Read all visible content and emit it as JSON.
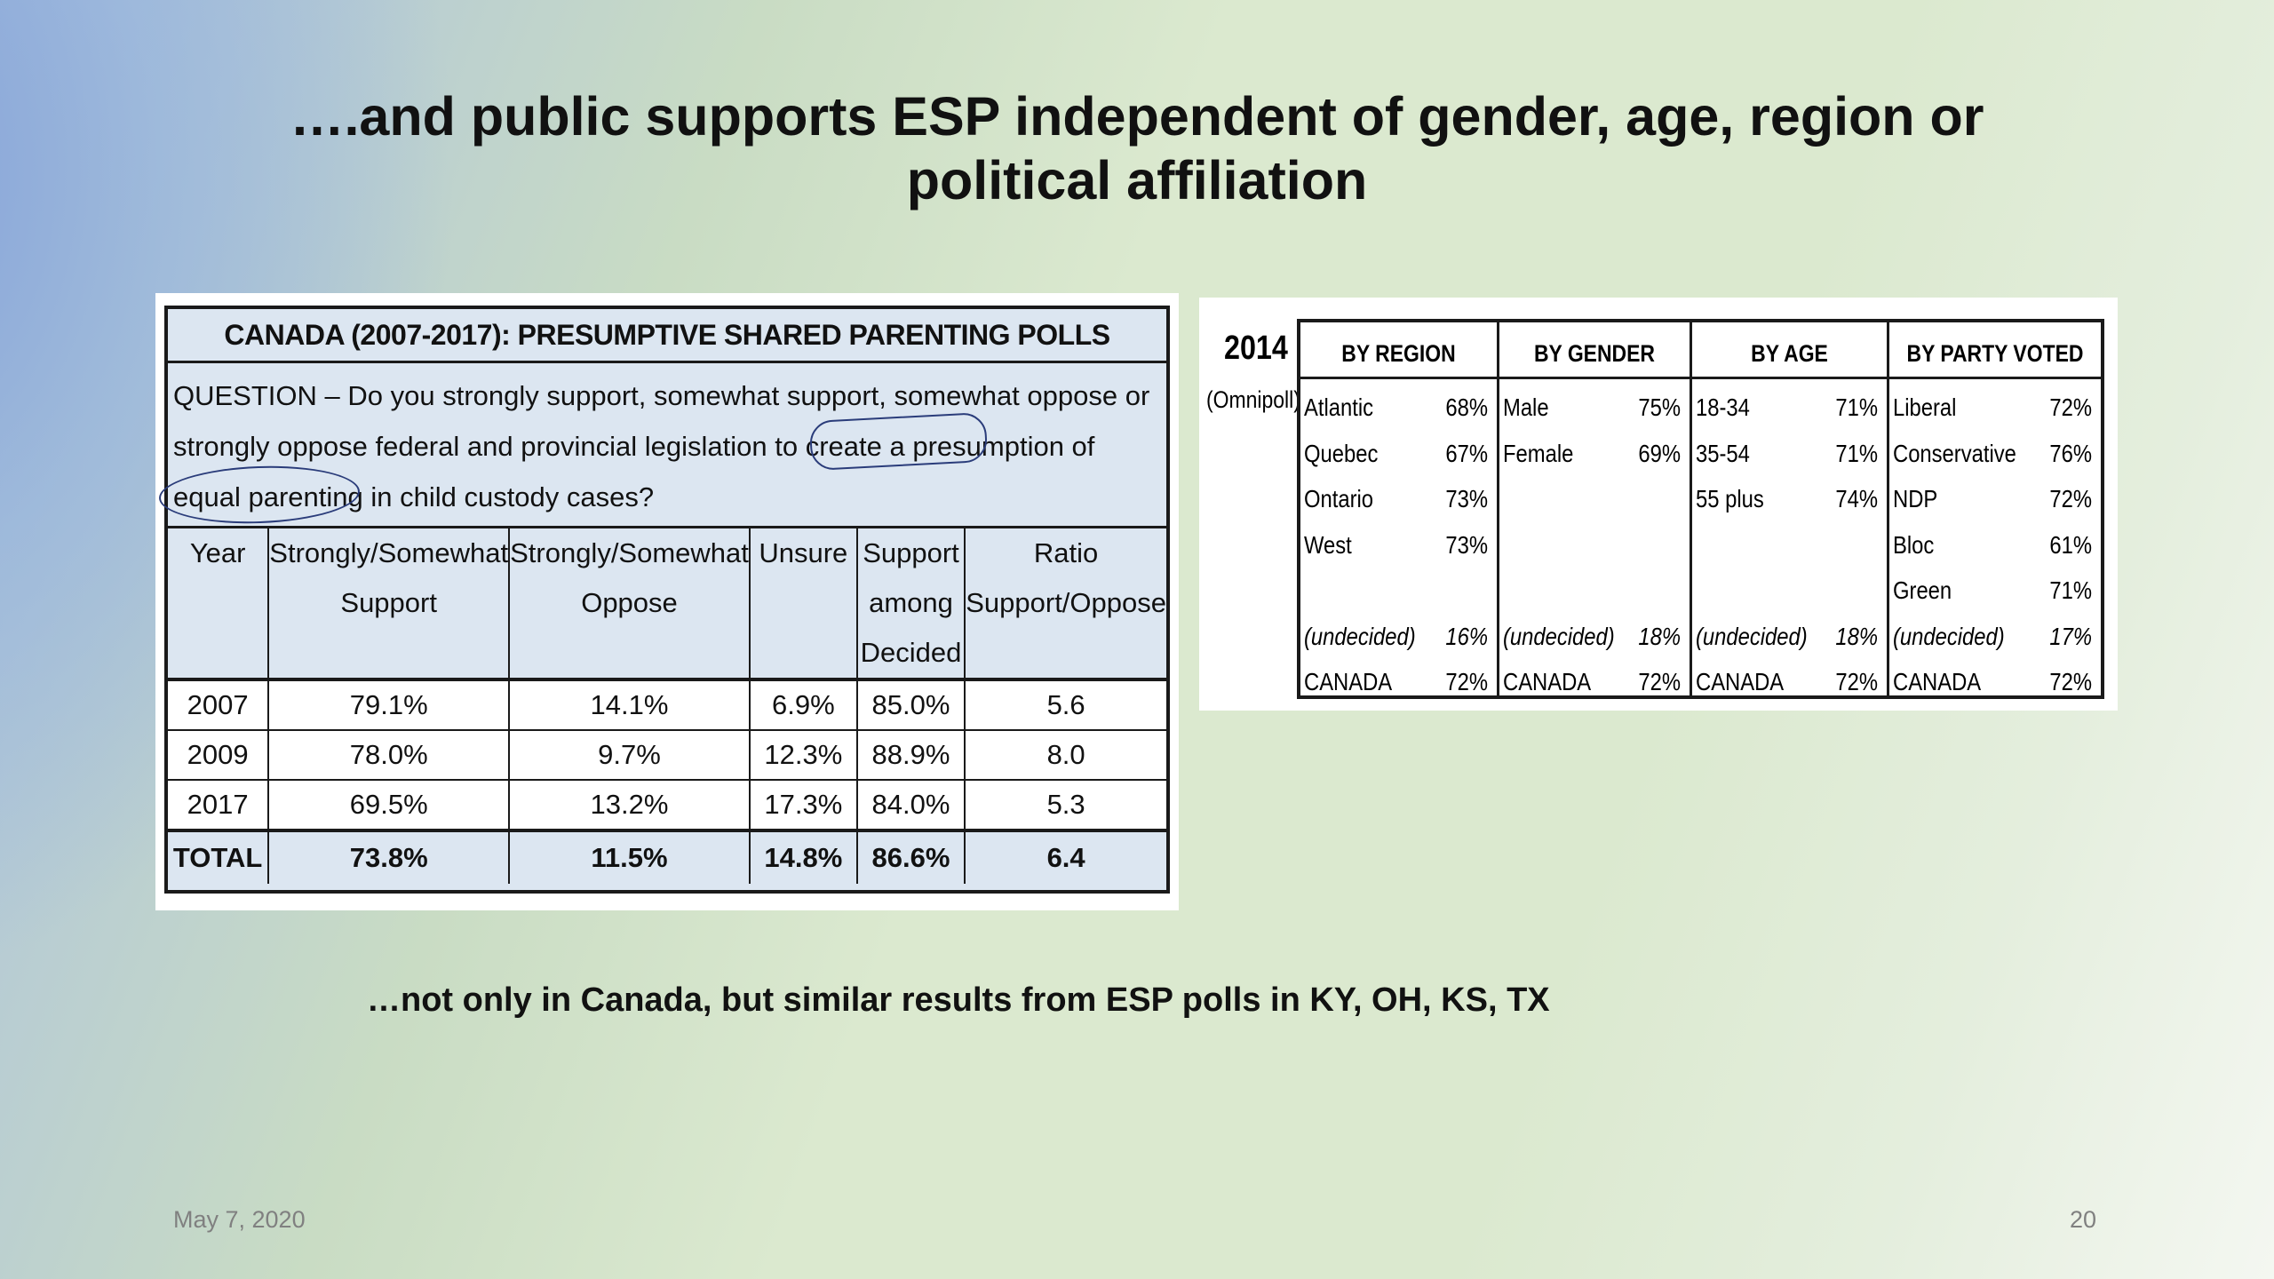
{
  "slide": {
    "title_line1": "….and public supports ESP independent of gender, age, region or",
    "title_line2": "political affiliation",
    "footer_text": "…not only in Canada, but similar results from ESP polls in KY, OH, KS, TX",
    "date": "May 7, 2020",
    "page_number": "20"
  },
  "left_table": {
    "title": "CANADA (2007-2017): PRESUMPTIVE SHARED PARENTING POLLS",
    "question_line1": "QUESTION – Do you strongly support, somewhat support, somewhat oppose or",
    "question_line2a": "strongly oppose federal and provincial legislation to create a ",
    "question_line2b": "presumption of",
    "question_line3a": " equal parenting ",
    "question_line3b": "in child custody cases?",
    "headers": {
      "year": "Year",
      "support_1": "Strongly/Somewhat",
      "support_2": "Support",
      "oppose_1": "Strongly/Somewhat",
      "oppose_2": "Oppose",
      "unsure": "Unsure",
      "decided_1": "Support",
      "decided_2": "among",
      "decided_3": "Decided",
      "ratio_1": "Ratio",
      "ratio_2": "Support/Oppose"
    },
    "rows": [
      {
        "year": "2007",
        "support": "79.1%",
        "oppose": "14.1%",
        "unsure": "6.9%",
        "decided": "85.0%",
        "ratio": "5.6"
      },
      {
        "year": "2009",
        "support": "78.0%",
        "oppose": "9.7%",
        "unsure": "12.3%",
        "decided": "88.9%",
        "ratio": "8.0"
      },
      {
        "year": "2017",
        "support": "69.5%",
        "oppose": "13.2%",
        "unsure": "17.3%",
        "decided": "84.0%",
        "ratio": "5.3"
      }
    ],
    "total": {
      "year": "TOTAL",
      "support": "73.8%",
      "oppose": "11.5%",
      "unsure": "14.8%",
      "decided": "86.6%",
      "ratio": "6.4"
    }
  },
  "right_table": {
    "year": "2014",
    "source": "(Omnipoll)",
    "region": {
      "header": "BY REGION",
      "rows": [
        [
          "Atlantic",
          "68%"
        ],
        [
          "Quebec",
          "67%"
        ],
        [
          "Ontario",
          "73%"
        ],
        [
          "West",
          "73%"
        ]
      ],
      "undecided": [
        "(undecided)",
        "16%"
      ],
      "canada": [
        "CANADA",
        "72%"
      ]
    },
    "gender": {
      "header": "BY GENDER",
      "rows": [
        [
          "Male",
          "75%"
        ],
        [
          "Female",
          "69%"
        ]
      ],
      "undecided": [
        "(undecided)",
        "18%"
      ],
      "canada": [
        "CANADA",
        "72%"
      ]
    },
    "age": {
      "header": "BY AGE",
      "rows": [
        [
          "18-34",
          "71%"
        ],
        [
          "35-54",
          "71%"
        ],
        [
          "55 plus",
          "74%"
        ]
      ],
      "undecided": [
        "(undecided)",
        "18%"
      ],
      "canada": [
        "CANADA",
        "72%"
      ]
    },
    "party": {
      "header": "BY PARTY VOTED",
      "rows": [
        [
          "Liberal",
          "72%"
        ],
        [
          "Conservative",
          "76%"
        ],
        [
          "NDP",
          "72%"
        ],
        [
          "Bloc",
          "61%"
        ],
        [
          "Green",
          "71%"
        ]
      ],
      "undecided": [
        "(undecided)",
        "17%"
      ],
      "canada": [
        "CANADA",
        "72%"
      ]
    }
  }
}
